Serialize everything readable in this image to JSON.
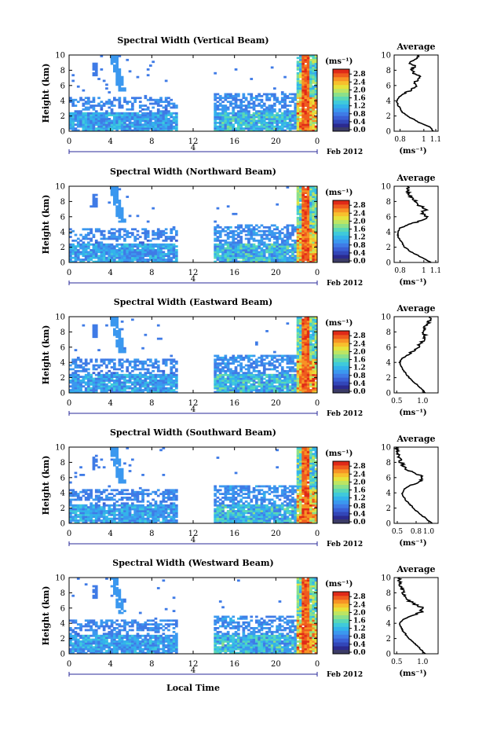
{
  "x_axis_label": "Local Time",
  "date_label": "Feb 2012",
  "day_label": "4",
  "unit_label": "(ms⁻¹)",
  "avg_title": "Average",
  "colormap": [
    "#2b2a8f",
    "#3246b8",
    "#3a5fd4",
    "#3f7be6",
    "#3b98ef",
    "#33b3ea",
    "#3fcadb",
    "#5ad8b5",
    "#8be08a",
    "#bde563",
    "#e6e23a",
    "#f7c02d",
    "#f79325",
    "#ef5c1e",
    "#e02a18"
  ],
  "chart_data": [
    {
      "type": "heatmap",
      "title": "Spectral Width (Vertical Beam)",
      "xlabel": "Local Time",
      "ylabel": "Height (km)",
      "x_ticks": [
        "0",
        "4",
        "8",
        "12",
        "16",
        "20",
        "0"
      ],
      "y_ticks": [
        "0",
        "2",
        "4",
        "6",
        "8",
        "10"
      ],
      "xlim": [
        0,
        24
      ],
      "ylim": [
        0,
        10
      ],
      "colorbar_ticks": [
        "0.0",
        "0.4",
        "0.8",
        "1.2",
        "1.6",
        "2.0",
        "2.4",
        "2.8"
      ],
      "colorbar_range": [
        0,
        3.0
      ],
      "average": {
        "title": "Average",
        "xlabel": "(ms⁻¹)",
        "x_ticks": [
          "0.8",
          "1",
          "1.1"
        ],
        "y_ticks": [
          "0",
          "2",
          "4",
          "6",
          "8",
          "10"
        ],
        "xlim": [
          0.75,
          1.12
        ],
        "ylim": [
          0,
          10
        ],
        "profile": [
          [
            1.08,
            0
          ],
          [
            1.06,
            0.5
          ],
          [
            0.98,
            1
          ],
          [
            0.92,
            1.5
          ],
          [
            0.86,
            2
          ],
          [
            0.82,
            2.5
          ],
          [
            0.8,
            3
          ],
          [
            0.78,
            3.5
          ],
          [
            0.77,
            4
          ],
          [
            0.79,
            4.5
          ],
          [
            0.84,
            5
          ],
          [
            0.9,
            5.5
          ],
          [
            0.95,
            6
          ],
          [
            0.92,
            6.5
          ],
          [
            0.98,
            7
          ],
          [
            0.93,
            7.5
          ],
          [
            0.89,
            8
          ],
          [
            0.92,
            8.5
          ],
          [
            0.88,
            9
          ],
          [
            0.94,
            9.5
          ],
          [
            0.96,
            10
          ]
        ]
      }
    },
    {
      "type": "heatmap",
      "title": "Spectral Width (Northward Beam)",
      "xlabel": "Local Time",
      "ylabel": "Height (km)",
      "x_ticks": [
        "0",
        "4",
        "8",
        "12",
        "16",
        "20",
        "0"
      ],
      "y_ticks": [
        "0",
        "2",
        "4",
        "6",
        "8",
        "10"
      ],
      "xlim": [
        0,
        24
      ],
      "ylim": [
        0,
        10
      ],
      "colorbar_ticks": [
        "0.0",
        "0.4",
        "0.8",
        "1.2",
        "1.6",
        "2.0",
        "2.4",
        "2.8"
      ],
      "colorbar_range": [
        0,
        3.0
      ],
      "average": {
        "title": "Average",
        "xlabel": "(ms⁻¹)",
        "x_ticks": [
          "0.8",
          "1",
          "1.1"
        ],
        "y_ticks": [
          "0",
          "2",
          "4",
          "6",
          "8",
          "10"
        ],
        "xlim": [
          0.75,
          1.12
        ],
        "ylim": [
          0,
          10
        ],
        "profile": [
          [
            1.06,
            0
          ],
          [
            1.0,
            0.5
          ],
          [
            0.94,
            1
          ],
          [
            0.88,
            1.5
          ],
          [
            0.84,
            2
          ],
          [
            0.82,
            2.5
          ],
          [
            0.8,
            3
          ],
          [
            0.78,
            3.5
          ],
          [
            0.78,
            4
          ],
          [
            0.8,
            4.5
          ],
          [
            0.88,
            5
          ],
          [
            0.98,
            5.5
          ],
          [
            1.03,
            6
          ],
          [
            0.98,
            6.5
          ],
          [
            1.02,
            7
          ],
          [
            0.96,
            7.5
          ],
          [
            0.93,
            8
          ],
          [
            0.9,
            8.5
          ],
          [
            0.88,
            9
          ],
          [
            0.86,
            9.5
          ],
          [
            0.86,
            10
          ]
        ]
      }
    },
    {
      "type": "heatmap",
      "title": "Spectral Width (Eastward Beam)",
      "xlabel": "Local Time",
      "ylabel": "Height (km)",
      "x_ticks": [
        "0",
        "4",
        "8",
        "12",
        "16",
        "20",
        "0"
      ],
      "y_ticks": [
        "0",
        "2",
        "4",
        "6",
        "8",
        "10"
      ],
      "xlim": [
        0,
        24
      ],
      "ylim": [
        0,
        10
      ],
      "colorbar_ticks": [
        "0.0",
        "0.4",
        "0.8",
        "1.2",
        "1.6",
        "2.0",
        "2.4",
        "2.8"
      ],
      "colorbar_range": [
        0,
        3.0
      ],
      "average": {
        "title": "Average",
        "xlabel": "(ms⁻¹)",
        "x_ticks": [
          "0.5",
          "1.0"
        ],
        "y_ticks": [
          "0",
          "2",
          "4",
          "6",
          "8",
          "10"
        ],
        "xlim": [
          0.45,
          1.3
        ],
        "ylim": [
          0,
          10
        ],
        "profile": [
          [
            1.05,
            0
          ],
          [
            0.98,
            0.5
          ],
          [
            0.9,
            1
          ],
          [
            0.82,
            1.5
          ],
          [
            0.74,
            2
          ],
          [
            0.68,
            2.5
          ],
          [
            0.62,
            3
          ],
          [
            0.58,
            3.5
          ],
          [
            0.56,
            4
          ],
          [
            0.6,
            4.5
          ],
          [
            0.72,
            5
          ],
          [
            0.82,
            5.5
          ],
          [
            0.92,
            6
          ],
          [
            0.96,
            6.5
          ],
          [
            1.02,
            7
          ],
          [
            1.06,
            7.5
          ],
          [
            1.0,
            8
          ],
          [
            1.04,
            8.5
          ],
          [
            1.1,
            9
          ],
          [
            1.12,
            9.5
          ],
          [
            1.14,
            10
          ]
        ]
      }
    },
    {
      "type": "heatmap",
      "title": "Spectral Width (Southward Beam)",
      "xlabel": "Local Time",
      "ylabel": "Height (km)",
      "x_ticks": [
        "0",
        "4",
        "8",
        "12",
        "16",
        "20",
        "0"
      ],
      "y_ticks": [
        "0",
        "2",
        "4",
        "6",
        "8",
        "10"
      ],
      "xlim": [
        0,
        24
      ],
      "ylim": [
        0,
        10
      ],
      "colorbar_ticks": [
        "0.0",
        "0.4",
        "0.8",
        "1.2",
        "1.6",
        "2.0",
        "2.4",
        "2.8"
      ],
      "colorbar_range": [
        0,
        3.0
      ],
      "average": {
        "title": "Average",
        "xlabel": "(ms⁻¹)",
        "x_ticks": [
          "0.5",
          "0.8",
          "1.0"
        ],
        "y_ticks": [
          "0",
          "2",
          "4",
          "6",
          "8",
          "10"
        ],
        "xlim": [
          0.45,
          1.15
        ],
        "ylim": [
          0,
          10
        ],
        "profile": [
          [
            1.05,
            0
          ],
          [
            0.98,
            0.5
          ],
          [
            0.9,
            1
          ],
          [
            0.82,
            1.5
          ],
          [
            0.76,
            2
          ],
          [
            0.7,
            2.5
          ],
          [
            0.64,
            3
          ],
          [
            0.6,
            3.5
          ],
          [
            0.58,
            4
          ],
          [
            0.6,
            4.5
          ],
          [
            0.72,
            5
          ],
          [
            0.86,
            5.5
          ],
          [
            0.92,
            6
          ],
          [
            0.82,
            6.5
          ],
          [
            0.66,
            7
          ],
          [
            0.6,
            7.5
          ],
          [
            0.56,
            8
          ],
          [
            0.54,
            8.5
          ],
          [
            0.52,
            9
          ],
          [
            0.5,
            9.5
          ],
          [
            0.48,
            10
          ]
        ]
      }
    },
    {
      "type": "heatmap",
      "title": "Spectral Width (Westward Beam)",
      "xlabel": "Local Time",
      "ylabel": "Height (km)",
      "x_ticks": [
        "0",
        "4",
        "8",
        "12",
        "16",
        "20",
        "0"
      ],
      "y_ticks": [
        "0",
        "2",
        "4",
        "6",
        "8",
        "10"
      ],
      "xlim": [
        0,
        24
      ],
      "ylim": [
        0,
        10
      ],
      "colorbar_ticks": [
        "0.0",
        "0.4",
        "0.8",
        "1.2",
        "1.6",
        "2.0",
        "2.4",
        "2.8"
      ],
      "colorbar_range": [
        0,
        3.0
      ],
      "average": {
        "title": "Average",
        "xlabel": "(ms⁻¹)",
        "x_ticks": [
          "0.5",
          "1.0"
        ],
        "y_ticks": [
          "0",
          "2",
          "4",
          "6",
          "8",
          "10"
        ],
        "xlim": [
          0.45,
          1.3
        ],
        "ylim": [
          0,
          10
        ],
        "profile": [
          [
            1.05,
            0
          ],
          [
            0.98,
            0.5
          ],
          [
            0.9,
            1
          ],
          [
            0.82,
            1.5
          ],
          [
            0.74,
            2
          ],
          [
            0.68,
            2.5
          ],
          [
            0.62,
            3
          ],
          [
            0.58,
            3.5
          ],
          [
            0.56,
            4
          ],
          [
            0.62,
            4.5
          ],
          [
            0.8,
            5
          ],
          [
            0.98,
            5.5
          ],
          [
            1.0,
            6
          ],
          [
            0.86,
            6.5
          ],
          [
            0.72,
            7
          ],
          [
            0.66,
            7.5
          ],
          [
            0.62,
            8
          ],
          [
            0.6,
            8.5
          ],
          [
            0.58,
            9
          ],
          [
            0.56,
            9.5
          ],
          [
            0.55,
            10
          ]
        ]
      }
    }
  ]
}
